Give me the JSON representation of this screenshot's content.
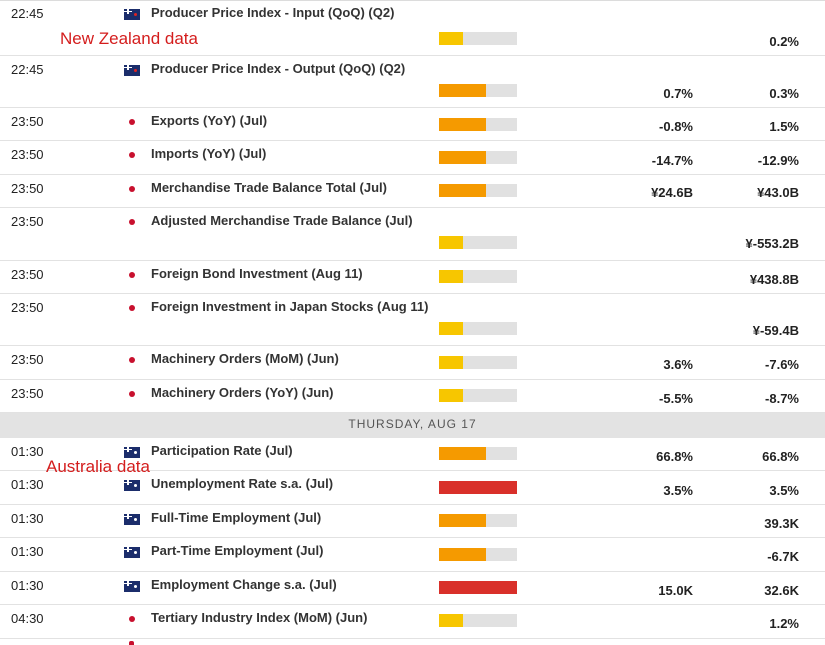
{
  "annotations": {
    "nz": "New Zealand data",
    "au": "Australia data"
  },
  "day_header": "THURSDAY, AUG 17",
  "colors": {
    "low": "#f7c600",
    "medium": "#f59a00",
    "high": "#d9302a"
  },
  "rows": [
    {
      "time": "22:45",
      "flag": "flag-nz-icon",
      "event": "Producer Price Index - Input (QoQ) (Q2)",
      "impact": "low",
      "consensus": "",
      "previous": "0.2%"
    },
    {
      "time": "22:45",
      "flag": "flag-nz-icon",
      "event": "Producer Price Index - Output (QoQ) (Q2)",
      "impact": "medium",
      "consensus": "0.7%",
      "previous": "0.3%"
    },
    {
      "time": "23:50",
      "flag": "flag-jp-icon",
      "event": "Exports (YoY) (Jul)",
      "impact": "medium",
      "consensus": "-0.8%",
      "previous": "1.5%"
    },
    {
      "time": "23:50",
      "flag": "flag-jp-icon",
      "event": "Imports (YoY) (Jul)",
      "impact": "medium",
      "consensus": "-14.7%",
      "previous": "-12.9%"
    },
    {
      "time": "23:50",
      "flag": "flag-jp-icon",
      "event": "Merchandise Trade Balance Total (Jul)",
      "impact": "medium",
      "consensus": "¥24.6B",
      "previous": "¥43.0B"
    },
    {
      "time": "23:50",
      "flag": "flag-jp-icon",
      "event": "Adjusted Merchandise Trade Balance (Jul)",
      "impact": "low",
      "consensus": "",
      "previous": "¥-553.2B"
    },
    {
      "time": "23:50",
      "flag": "flag-jp-icon",
      "event": "Foreign Bond Investment (Aug 11)",
      "impact": "low",
      "consensus": "",
      "previous": "¥438.8B"
    },
    {
      "time": "23:50",
      "flag": "flag-jp-icon",
      "event": "Foreign Investment in Japan Stocks (Aug 11)",
      "impact": "low",
      "consensus": "",
      "previous": "¥-59.4B"
    },
    {
      "time": "23:50",
      "flag": "flag-jp-icon",
      "event": "Machinery Orders (MoM) (Jun)",
      "impact": "low",
      "consensus": "3.6%",
      "previous": "-7.6%"
    },
    {
      "time": "23:50",
      "flag": "flag-jp-icon",
      "event": "Machinery Orders (YoY) (Jun)",
      "impact": "low",
      "consensus": "-5.5%",
      "previous": "-8.7%"
    },
    {
      "time": "01:30",
      "flag": "flag-au-icon",
      "event": "Participation Rate (Jul)",
      "impact": "medium",
      "consensus": "66.8%",
      "previous": "66.8%"
    },
    {
      "time": "01:30",
      "flag": "flag-au-icon",
      "event": "Unemployment Rate s.a. (Jul)",
      "impact": "high",
      "consensus": "3.5%",
      "previous": "3.5%"
    },
    {
      "time": "01:30",
      "flag": "flag-au-icon",
      "event": "Full-Time Employment (Jul)",
      "impact": "medium",
      "consensus": "",
      "previous": "39.3K"
    },
    {
      "time": "01:30",
      "flag": "flag-au-icon",
      "event": "Part-Time Employment (Jul)",
      "impact": "medium",
      "consensus": "",
      "previous": "-6.7K"
    },
    {
      "time": "01:30",
      "flag": "flag-au-icon",
      "event": "Employment Change s.a. (Jul)",
      "impact": "high",
      "consensus": "15.0K",
      "previous": "32.6K"
    },
    {
      "time": "04:30",
      "flag": "flag-jp-icon",
      "event": "Tertiary Industry Index (MoM) (Jun)",
      "impact": "low",
      "consensus": "",
      "previous": "1.2%"
    }
  ]
}
